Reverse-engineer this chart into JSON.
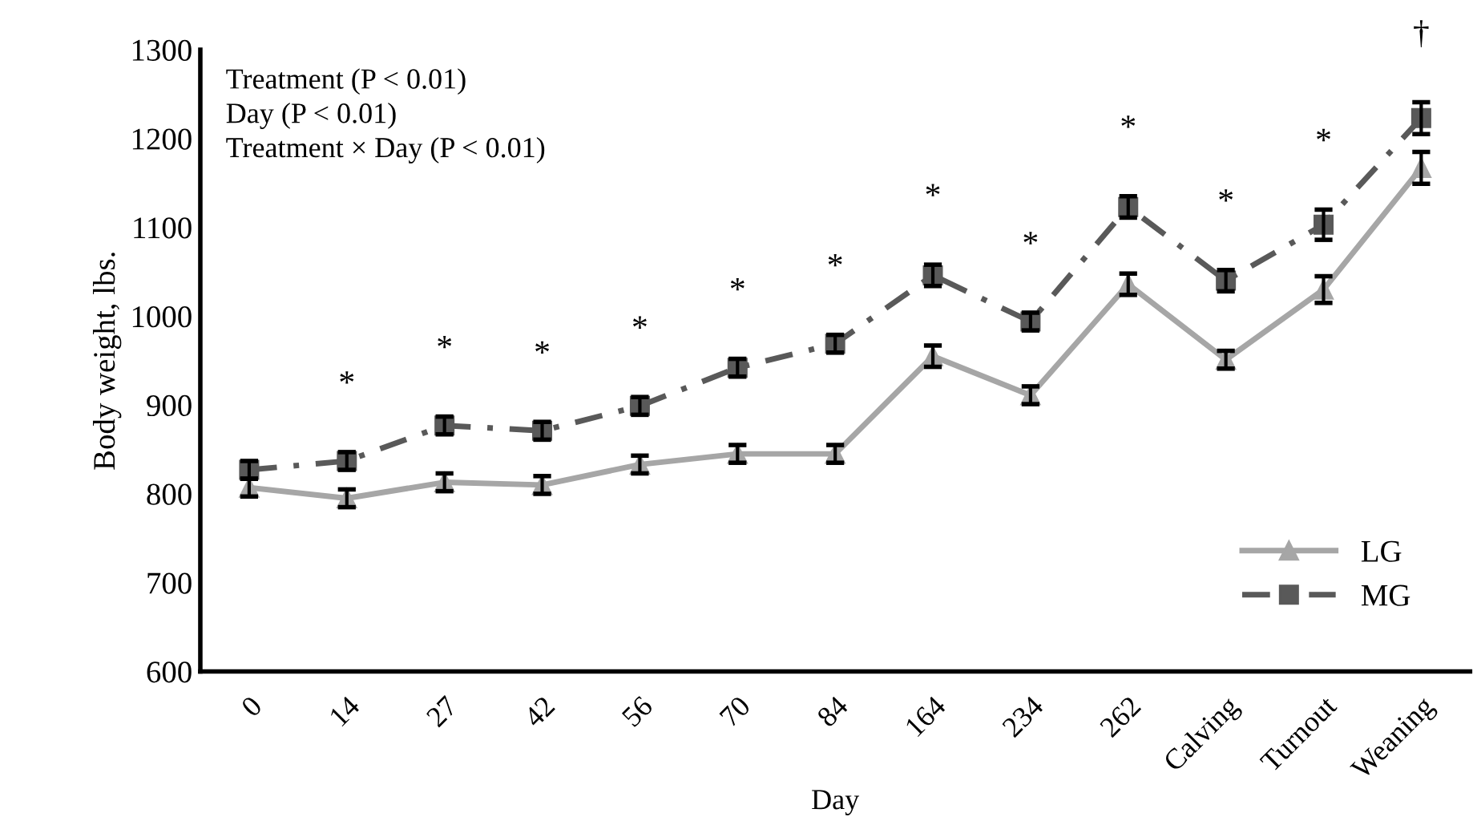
{
  "chart_data": {
    "type": "line",
    "xlabel": "Day",
    "ylabel": "Body weight, lbs.",
    "categories": [
      "0",
      "14",
      "27",
      "42",
      "56",
      "70",
      "84",
      "164",
      "234",
      "262",
      "Calving",
      "Turnout",
      "Weaning"
    ],
    "series": [
      {
        "name": "LG",
        "color": "#a6a6a6",
        "marker": "triangle",
        "line_style": "solid",
        "values": [
          807,
          795,
          813,
          810,
          833,
          845,
          845,
          955,
          911,
          1036,
          951,
          1030,
          1167
        ],
        "errors": [
          10,
          10,
          10,
          10,
          10,
          10,
          10,
          12,
          10,
          12,
          10,
          15,
          18
        ]
      },
      {
        "name": "MG",
        "color": "#595959",
        "marker": "square",
        "line_style": "dashdot",
        "values": [
          827,
          837,
          877,
          871,
          899,
          942,
          969,
          1046,
          994,
          1123,
          1040,
          1103,
          1223
        ],
        "errors": [
          10,
          10,
          10,
          10,
          10,
          10,
          10,
          12,
          10,
          12,
          12,
          17,
          18
        ]
      }
    ],
    "ylim": [
      600,
      1300
    ],
    "yticks": [
      600,
      700,
      800,
      900,
      1000,
      1100,
      1200,
      1300
    ],
    "grid": false,
    "legend": "bottom right",
    "annotations": [
      "Treatment (P < 0.01)\nDay (P < 0.01)\nTreatment × Day (P < 0.01)",
      "*",
      "*",
      "*",
      "*",
      "*",
      "*",
      "*",
      "*",
      "*",
      "*",
      "*",
      "†"
    ]
  }
}
